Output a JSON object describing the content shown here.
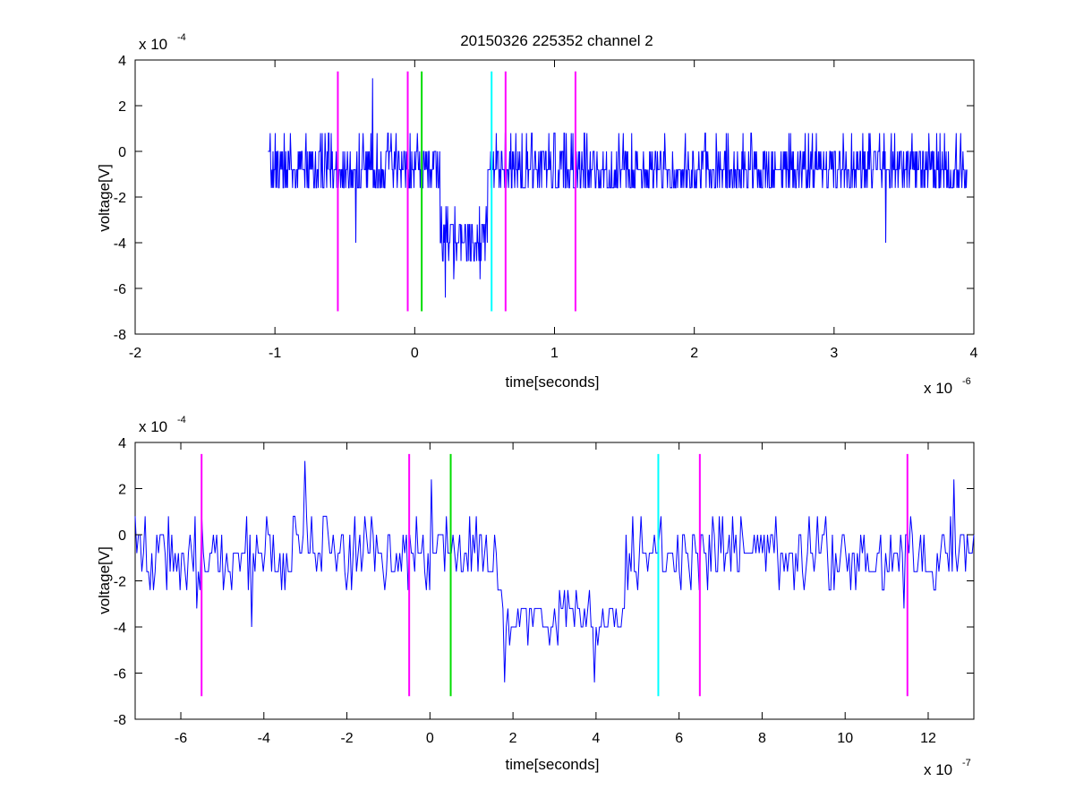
{
  "figure_title": "20150326 225352 channel 2",
  "chart_data": [
    {
      "type": "line",
      "title": "20150326 225352 channel 2",
      "xlabel": "time[seconds]",
      "ylabel": "voltage[V]",
      "x_multiplier_base": "x 10",
      "x_multiplier_exp": "-6",
      "y_multiplier_base": "x 10",
      "y_multiplier_exp": "-4",
      "xlim": [
        -2,
        4
      ],
      "ylim": [
        -8,
        4
      ],
      "x_tick_labels": [
        "-2",
        "-1",
        "0",
        "1",
        "2",
        "3",
        "4"
      ],
      "y_tick_labels": [
        "-8",
        "-6",
        "-4",
        "-2",
        "0",
        "2",
        "4"
      ],
      "grid": false,
      "noise": {
        "seed": 7,
        "x_start": -1.05,
        "x_end": 3.95,
        "n_points": 1250,
        "levels": [
          -1.6,
          -0.8,
          0,
          0.8
        ],
        "baseline_mean": -0.8,
        "spread": 0.75
      },
      "dip": {
        "x_start": 0.18,
        "x_end": 0.52,
        "mean": -3.8,
        "min_value": -6.4
      },
      "spikes": [
        {
          "x": -0.3,
          "value": 3.2
        },
        {
          "x": 0.22,
          "value": -6.4
        },
        {
          "x": -0.42,
          "value": -4.0
        },
        {
          "x": 3.37,
          "value": -4.0
        }
      ],
      "series": [
        {
          "color": "#0000ff"
        }
      ],
      "vertical_markers": [
        {
          "x": -0.55,
          "color": "#ff00ff",
          "y_range": [
            -7,
            3.5
          ]
        },
        {
          "x": -0.05,
          "color": "#ff00ff",
          "y_range": [
            -7,
            3.5
          ]
        },
        {
          "x": 0.05,
          "color": "#00dd00",
          "y_range": [
            -7,
            3.5
          ]
        },
        {
          "x": 0.55,
          "color": "#00ffff",
          "y_range": [
            -7,
            3.5
          ]
        },
        {
          "x": 0.65,
          "color": "#ff00ff",
          "y_range": [
            -7,
            3.5
          ]
        },
        {
          "x": 1.15,
          "color": "#ff00ff",
          "y_range": [
            -7,
            3.5
          ]
        }
      ]
    },
    {
      "type": "line",
      "title": "",
      "xlabel": "time[seconds]",
      "ylabel": "voltage[V]",
      "x_multiplier_base": "x 10",
      "x_multiplier_exp": "-7",
      "y_multiplier_base": "x 10",
      "y_multiplier_exp": "-4",
      "xlim": [
        -7.1,
        13.1
      ],
      "ylim": [
        -8,
        4
      ],
      "x_ticks": [
        -6,
        -4,
        -2,
        0,
        2,
        4,
        6,
        8,
        10,
        12
      ],
      "x_tick_labels": [
        "-6",
        "-4",
        "-2",
        "0",
        "2",
        "4",
        "6",
        "8",
        "10",
        "12"
      ],
      "y_tick_labels": [
        "-8",
        "-6",
        "-4",
        "-2",
        "0",
        "2",
        "4"
      ],
      "grid": false,
      "noise": {
        "seed": 19,
        "x_start": -7.1,
        "x_end": 13.1,
        "n_points": 505,
        "levels": [
          -2.4,
          -1.6,
          -0.8,
          0,
          0.8
        ],
        "baseline_mean": -0.8,
        "spread": 0.85
      },
      "dip": {
        "x_start": 1.6,
        "x_end": 4.7,
        "mean": -3.6,
        "min_value": -6.4
      },
      "spikes": [
        {
          "x": -3.0,
          "value": 3.2
        },
        {
          "x": 0.05,
          "value": 2.4
        },
        {
          "x": 12.6,
          "value": 2.4
        },
        {
          "x": 1.8,
          "value": -6.4
        },
        {
          "x": 3.95,
          "value": -6.4
        },
        {
          "x": -4.3,
          "value": -4.0
        },
        {
          "x": 11.4,
          "value": -3.2
        },
        {
          "x": -5.6,
          "value": -3.2
        }
      ],
      "series": [
        {
          "color": "#0000ff"
        }
      ],
      "vertical_markers": [
        {
          "x": -5.5,
          "color": "#ff00ff",
          "y_range": [
            -7,
            3.5
          ]
        },
        {
          "x": -0.5,
          "color": "#ff00ff",
          "y_range": [
            -7,
            3.5
          ]
        },
        {
          "x": 0.5,
          "color": "#00dd00",
          "y_range": [
            -7,
            3.5
          ]
        },
        {
          "x": 5.5,
          "color": "#00ffff",
          "y_range": [
            -7,
            3.5
          ]
        },
        {
          "x": 6.5,
          "color": "#ff00ff",
          "y_range": [
            -7,
            3.5
          ]
        },
        {
          "x": 11.5,
          "color": "#ff00ff",
          "y_range": [
            -7,
            3.5
          ]
        }
      ]
    }
  ]
}
